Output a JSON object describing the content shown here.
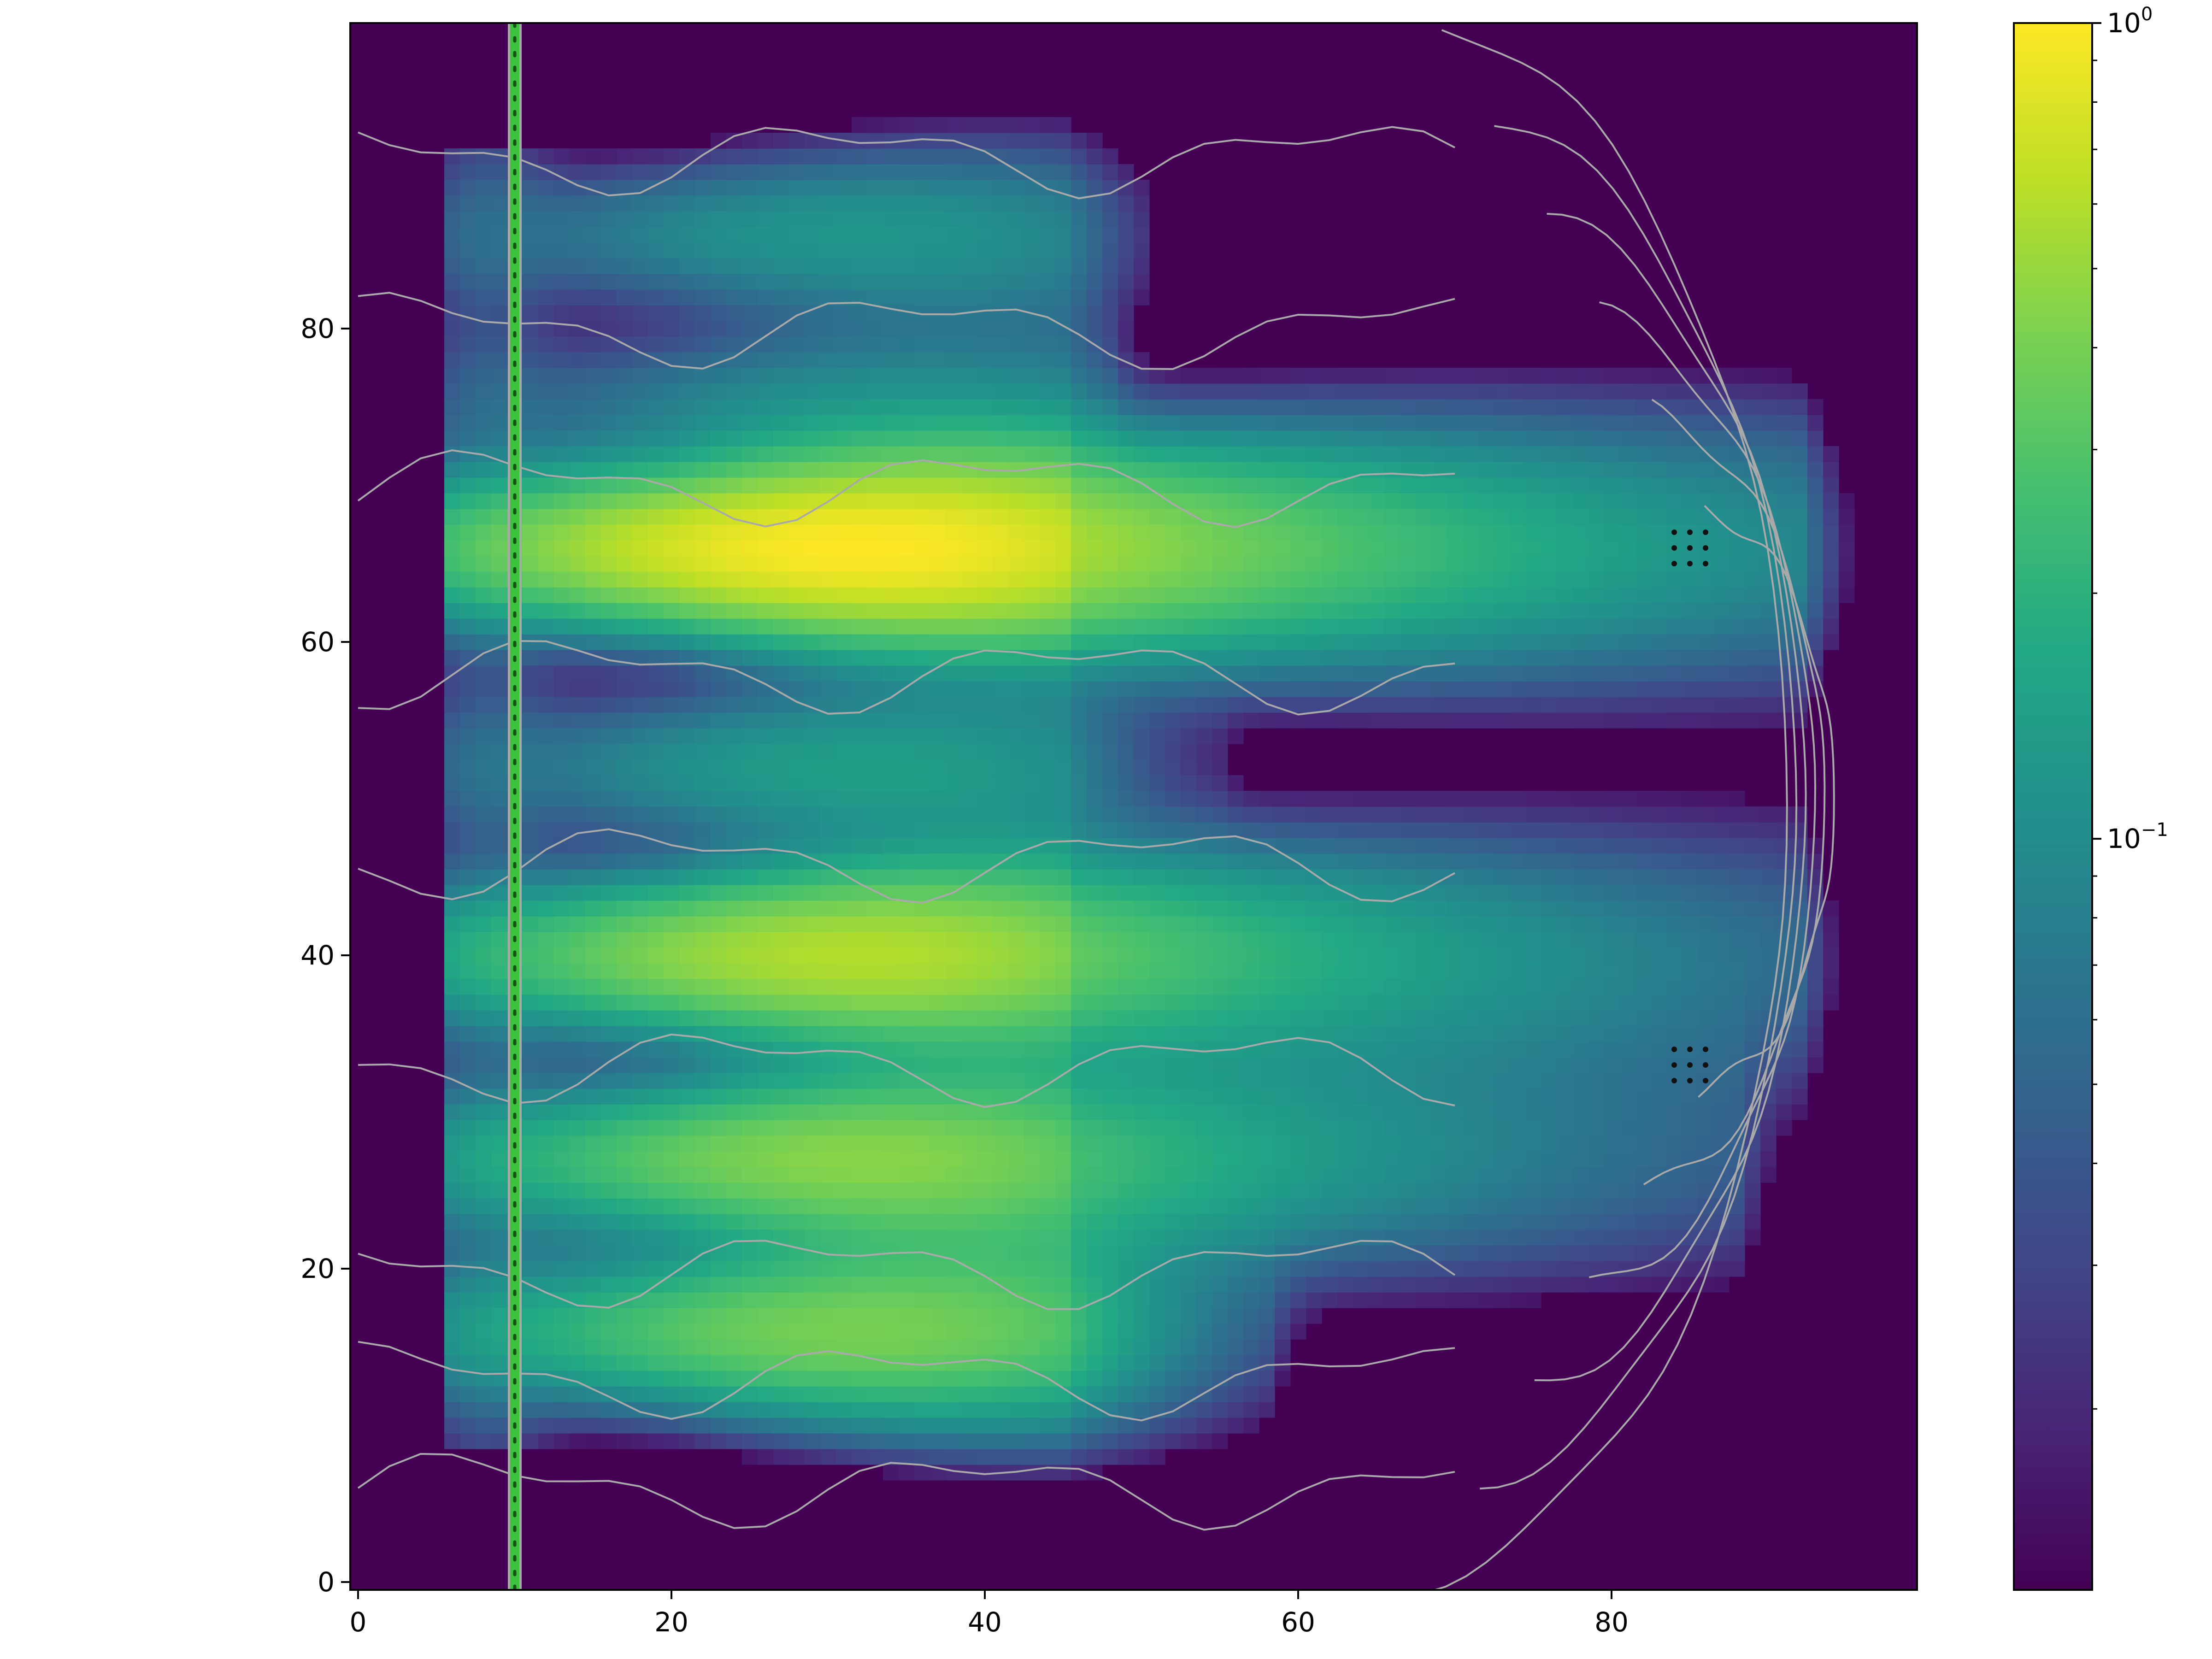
{
  "chart_data": {
    "type": "heatmap",
    "title": "",
    "xlabel": "",
    "ylabel": "",
    "xlim": [
      -0.5,
      99.5
    ],
    "ylim": [
      -0.5,
      99.5
    ],
    "x_ticks": [
      0,
      20,
      40,
      60,
      80
    ],
    "x_tick_labels": [
      "0",
      "20",
      "40",
      "60",
      "80"
    ],
    "y_ticks": [
      0,
      20,
      40,
      60,
      80
    ],
    "y_tick_labels": [
      "0",
      "20",
      "40",
      "60",
      "80"
    ],
    "colormap": "viridis",
    "color_scale": "log",
    "color_range": [
      0.012,
      1.0
    ],
    "colorbar_ticks": [
      {
        "value": 1.0,
        "base": "10",
        "exp": "0"
      },
      {
        "value": 0.1,
        "base": "10",
        "exp": "−1"
      }
    ],
    "source_line": {
      "x": 10,
      "y_range": [
        -0.5,
        99.5
      ],
      "color": "#3cc23c",
      "style": "solid-with-dotted-core"
    },
    "receivers": [
      {
        "x_range": [
          84,
          86
        ],
        "y_range": [
          65,
          67
        ]
      },
      {
        "x_range": [
          84,
          86
        ],
        "y_range": [
          32,
          34
        ]
      }
    ],
    "beams": [
      {
        "y": 86,
        "peak": 0.12,
        "x_end": 50
      },
      {
        "y": 75,
        "peak": 0.1,
        "x_end": 48
      },
      {
        "y": 66,
        "peak": 1.0,
        "x_end": 92
      },
      {
        "y": 52,
        "peak": 0.14,
        "x_end": 55
      },
      {
        "y": 40,
        "peak": 0.6,
        "x_end": 92
      },
      {
        "y": 27,
        "peak": 0.45,
        "x_end": 88
      },
      {
        "y": 16,
        "peak": 0.4,
        "x_end": 58
      }
    ],
    "contour_color": "#a9a9a9",
    "colors": {
      "background": "#440154",
      "axes": "#000000",
      "contour": "#a9a9a9"
    }
  }
}
